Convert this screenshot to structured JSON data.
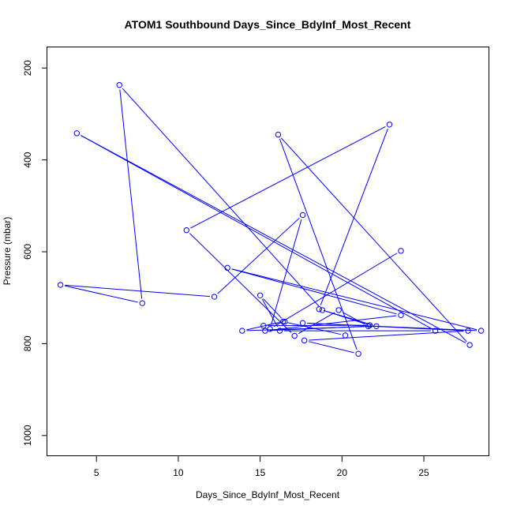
{
  "chart_data": {
    "type": "line",
    "title": "ATOM1 Southbound Days_Since_BdyInf_Most_Recent",
    "xlabel": "Days_Since_BdyInf_Most_Recent",
    "ylabel": "Pressure (mbar)",
    "xlim": [
      2.0,
      29.0
    ],
    "ylim": [
      1045,
      155
    ],
    "y_reversed": true,
    "grid": false,
    "legend": "none",
    "x_ticks": [
      5,
      10,
      15,
      20,
      25
    ],
    "x_tick_labels": [
      "5",
      "10",
      "15",
      "20",
      "25"
    ],
    "y_ticks": [
      200,
      400,
      600,
      800,
      1000
    ],
    "y_tick_labels": [
      "200",
      "400",
      "600",
      "800",
      "1000"
    ],
    "series": [
      {
        "color": "#0000ff",
        "marker": "open-circle",
        "x": [
          23.6,
          15.6,
          17.6,
          12.2,
          2.8,
          7.8,
          6.4,
          18.8,
          21.7,
          15.2,
          16.5,
          15.0,
          16.2,
          25.7,
          3.8,
          27.8,
          16.1,
          21.0,
          17.7,
          27.7,
          17.6,
          28.5,
          13.0,
          23.6,
          15.3,
          21.6,
          19.8,
          17.1,
          10.5,
          22.9,
          18.6,
          22.1,
          13.9,
          16.4,
          20.2
        ],
        "y": [
          598,
          768,
          520,
          698,
          672,
          712,
          237,
          727,
          760,
          761,
          752,
          695,
          772,
          772,
          342,
          803,
          345,
          822,
          793,
          772,
          755,
          772,
          635,
          738,
          772,
          762,
          727,
          783,
          553,
          323,
          725,
          762,
          772,
          752,
          782
        ]
      }
    ]
  }
}
